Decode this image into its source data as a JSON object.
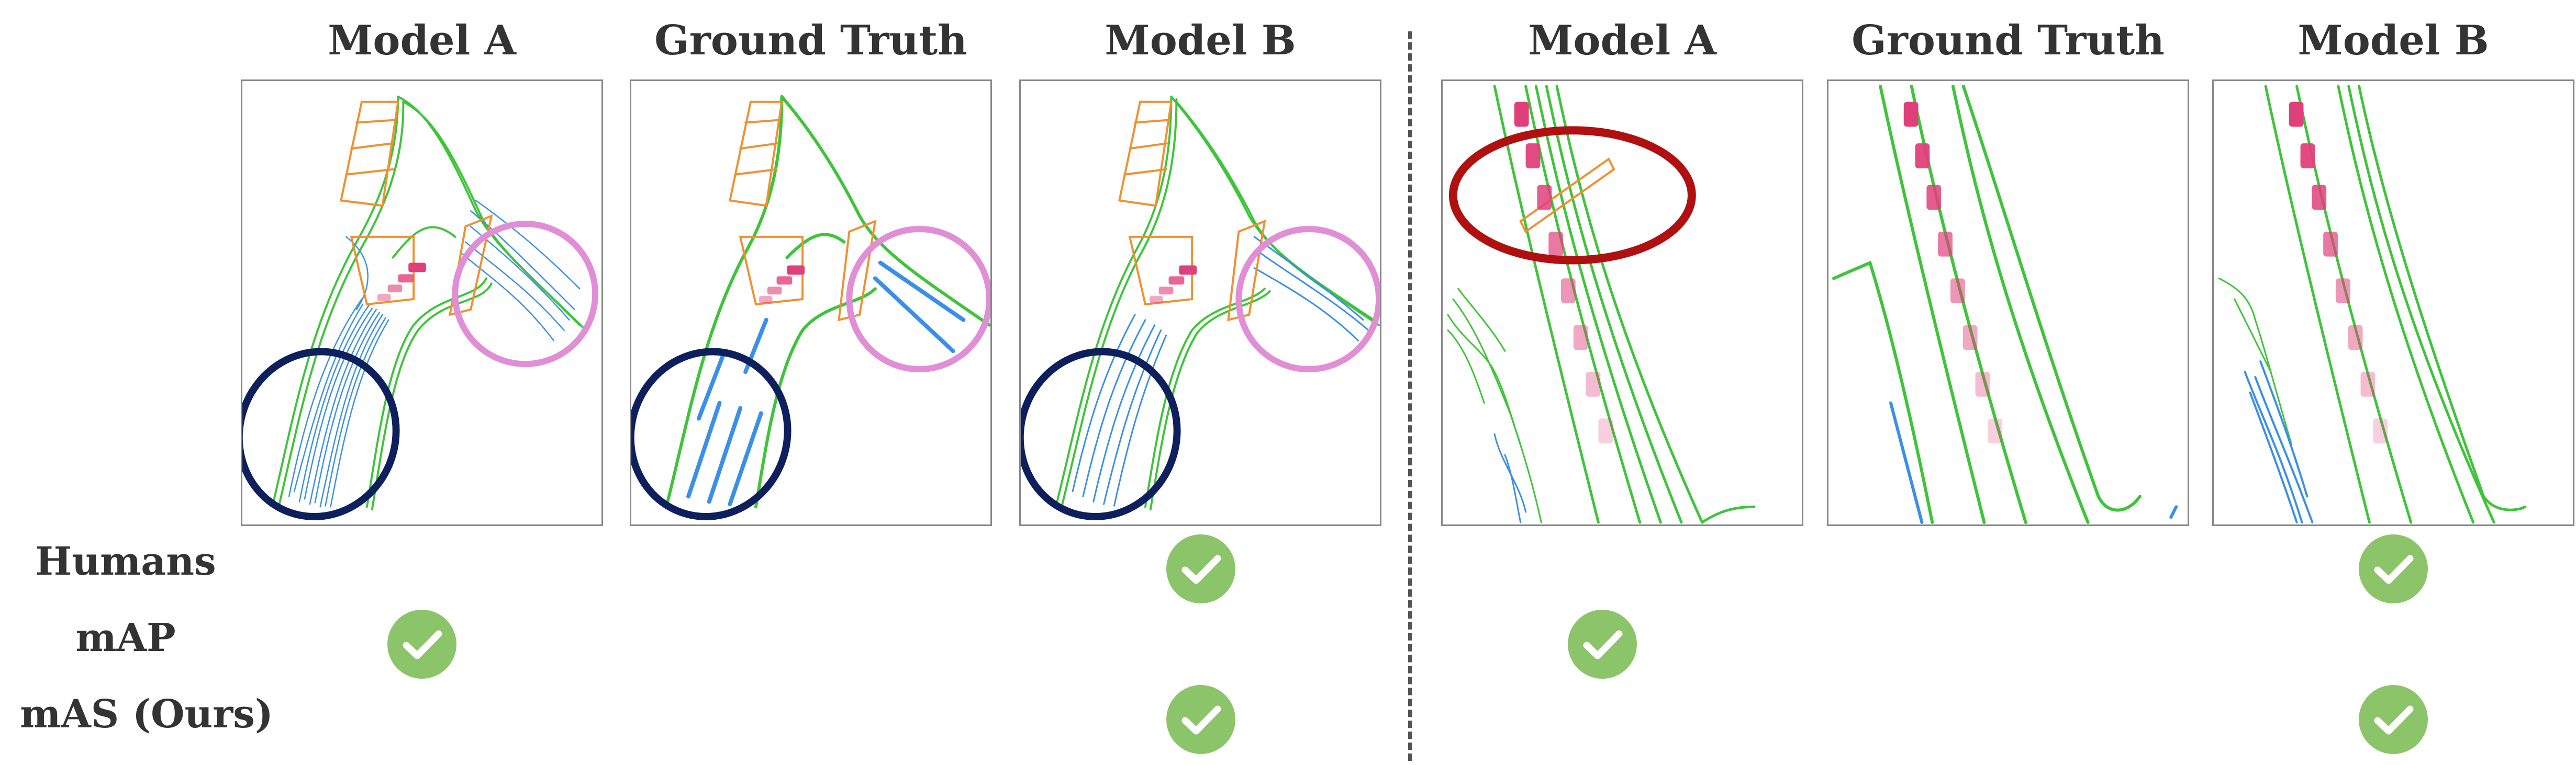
{
  "headers": [
    "Model A",
    "Ground Truth",
    "Model B",
    "Model A",
    "Ground Truth",
    "Model B"
  ],
  "row_labels": [
    "Humans",
    "mAP",
    "mAS  (Ours)"
  ],
  "checks": {
    "humans": [
      "left-model-b",
      "right-model-b"
    ],
    "map": [
      "left-model-a",
      "right-model-a"
    ],
    "mas": [
      "left-model-b",
      "right-model-b"
    ]
  },
  "colors": {
    "boundary": "#3ec43a",
    "divider_lane": "#3a8fe8",
    "crossing": "#f09030",
    "vehicle": "#e0407a",
    "highlight_navy": "#0d1f5c",
    "highlight_pink": "#e08ed6",
    "highlight_red": "#b01010",
    "check": "#8cc46a"
  },
  "icons": [
    "check-circle-icon"
  ]
}
